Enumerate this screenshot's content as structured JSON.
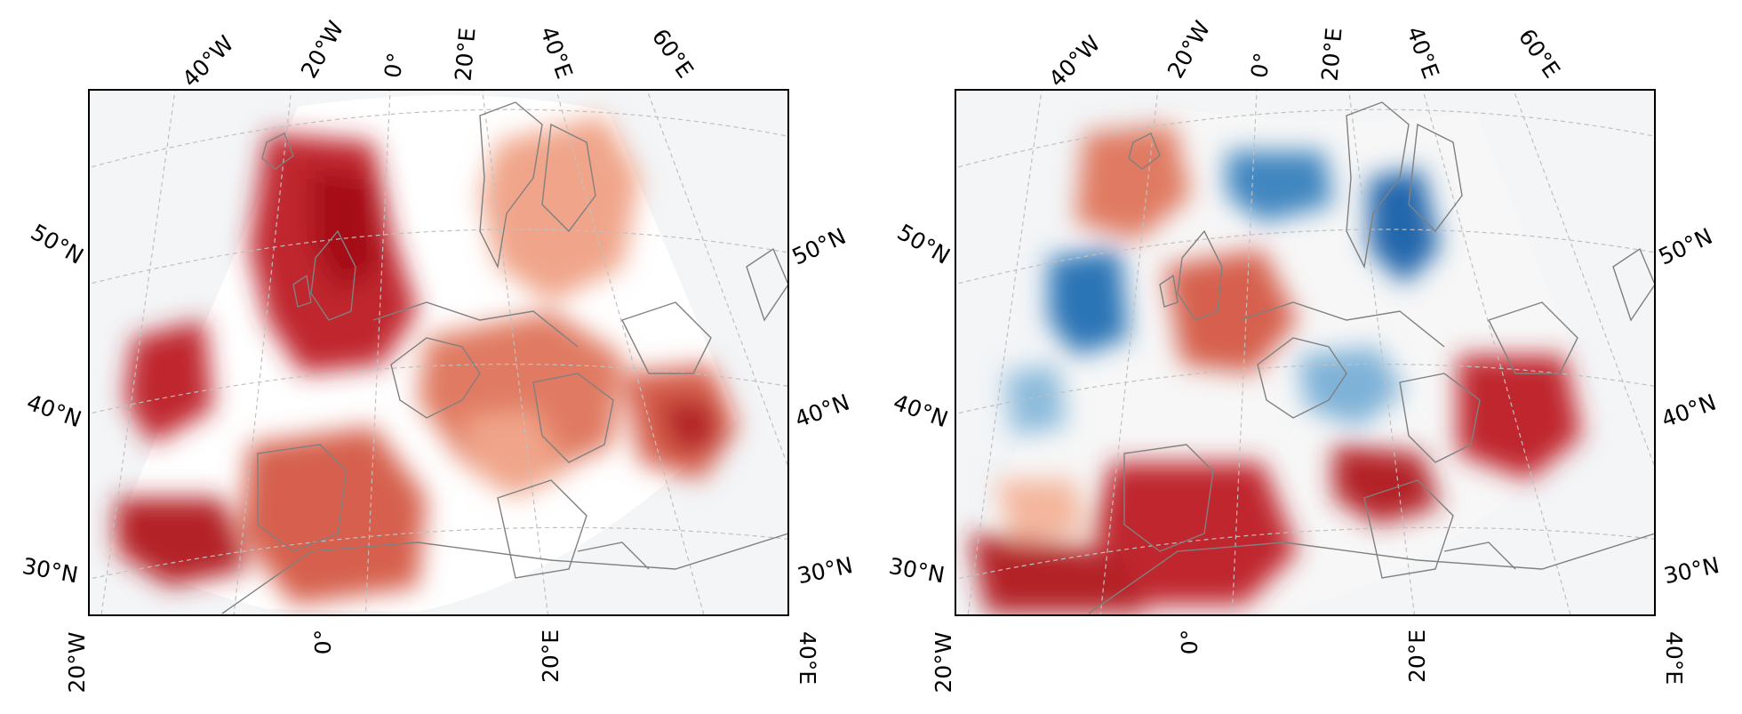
{
  "colors": {
    "ocean": "#f3f5f7",
    "frame": "#000000",
    "coast": "#808080",
    "grid": "#c0c0c0",
    "red_dark": "#a50f15",
    "red_mid": "#d6604d",
    "red_light": "#f4b69c",
    "blue_dark": "#2166ac",
    "blue_mid": "#6fa9d2",
    "blue_light": "#cfe3f0"
  },
  "colormap": "RdBu_r",
  "projection": "conic",
  "top_longitude_labels": [
    "40°W",
    "20°W",
    "0°",
    "20°E",
    "40°E",
    "60°E"
  ],
  "bottom_longitude_labels": [
    "20°W",
    "0°",
    "20°E",
    "40°E"
  ],
  "left_latitude_labels": [
    "50°N",
    "40°N",
    "30°N"
  ],
  "right_latitude_labels": [
    "50°N",
    "40°N",
    "30°N"
  ],
  "panels": [
    {
      "id": "left",
      "field": "positive anomaly only (reds)"
    },
    {
      "id": "right",
      "field": "mixed anomaly (reds and blues)"
    }
  ]
}
